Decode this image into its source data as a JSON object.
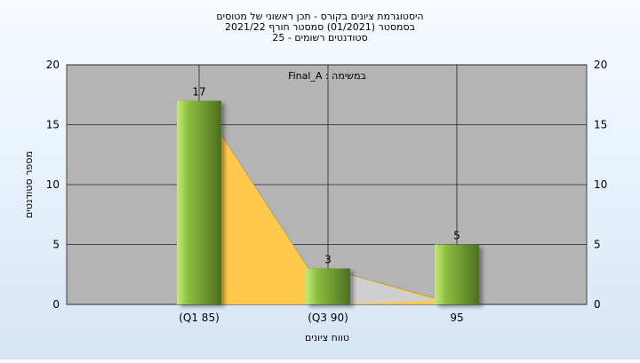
{
  "chart_data": {
    "type": "bar",
    "title_lines": [
      "היסטוגרמת ציונים בקורס - תכן ראשוני של מטוסים",
      "בסמסטר  (01/2021)  סמסטר חורף  2021/22",
      "סטודנטים רשומים - 25"
    ],
    "annotation": "Final_A : במשימה",
    "xlabel": "טווח ציונים",
    "ylabel": "מספר סטודנטים",
    "categories": [
      "(Q1 85)",
      "(Q3 90)",
      "95"
    ],
    "values": [
      17,
      3,
      5
    ],
    "data_labels": [
      "17",
      "3",
      "5"
    ],
    "yticks": [
      "0",
      "5",
      "10",
      "15",
      "20"
    ],
    "ylim": [
      0,
      20
    ],
    "grid": true,
    "secondary_y_axis": true,
    "trend_area": {
      "points": [
        [
          0,
          17
        ],
        [
          0.85,
          3
        ],
        [
          1,
          3
        ],
        [
          2,
          0
        ]
      ],
      "shadow_points": [
        [
          1,
          3
        ],
        [
          1.85,
          0.3
        ],
        [
          1,
          0
        ]
      ]
    },
    "colors": {
      "plot_bg": "#b4b4b4",
      "bar_light": "#c8e87a",
      "bar_mid": "#8cbf3f",
      "bar_dark": "#4d6f20",
      "area": "#ffc94d",
      "shadow_area": "#cfcfcf"
    }
  }
}
